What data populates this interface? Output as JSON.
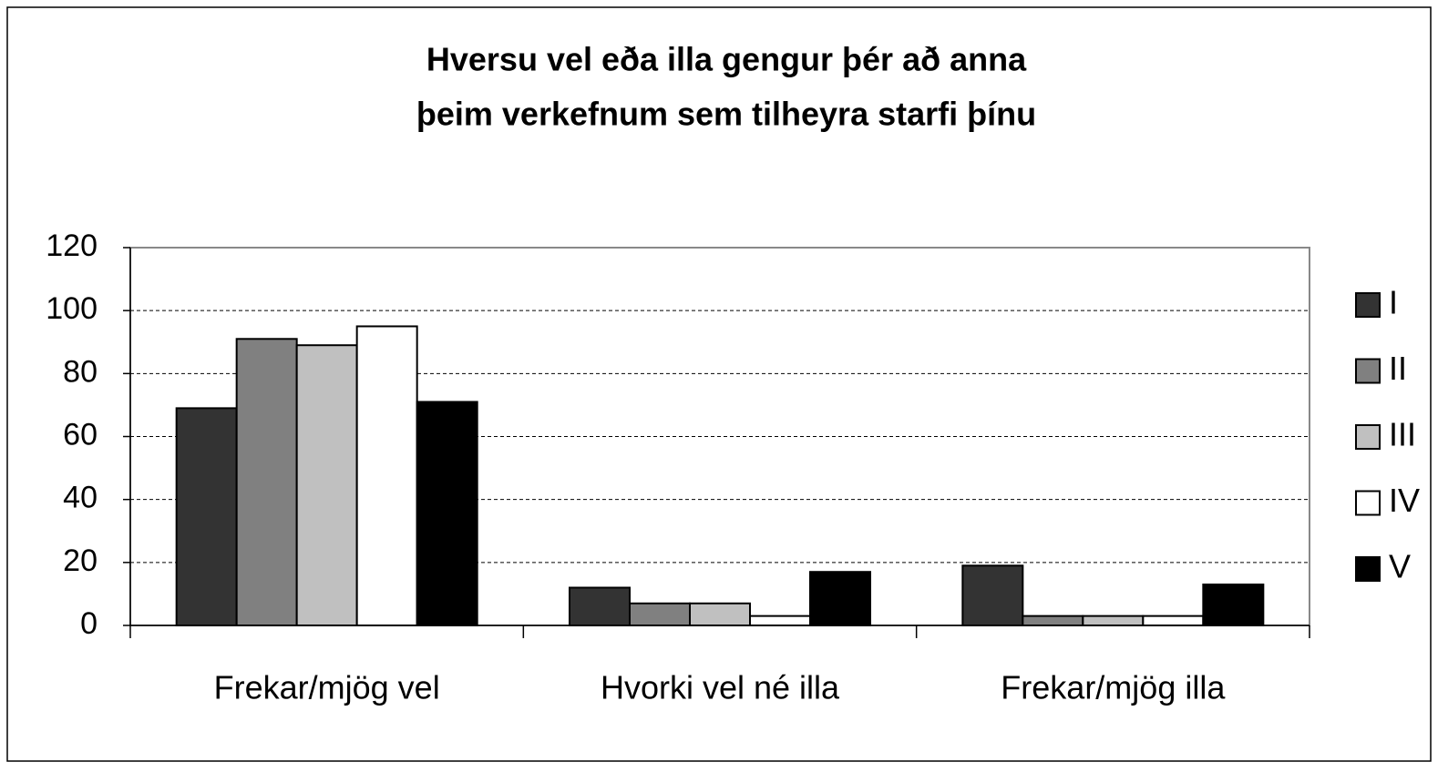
{
  "chart_data": {
    "type": "bar",
    "title": [
      "Hversu vel eða illa gengur þér að anna",
      "þeim verkefnum sem tilheyra starfi þínu"
    ],
    "categories": [
      "Frekar/mjög vel",
      "Hvorki vel né illa",
      "Frekar/mjög illa"
    ],
    "series": [
      {
        "name": "I",
        "color": "#333333",
        "values": [
          69,
          12,
          19
        ]
      },
      {
        "name": "II",
        "color": "#808080",
        "values": [
          91,
          7,
          3
        ]
      },
      {
        "name": "III",
        "color": "#c0c0c0",
        "values": [
          89,
          7,
          3
        ]
      },
      {
        "name": "IV",
        "color": "#ffffff",
        "values": [
          95,
          3,
          3
        ]
      },
      {
        "name": "V",
        "color": "#000000",
        "values": [
          71,
          17,
          13
        ]
      }
    ],
    "ylim": [
      0,
      120
    ],
    "yticks": [
      0,
      20,
      40,
      60,
      80,
      100,
      120
    ],
    "grid": true,
    "legend": "right"
  }
}
